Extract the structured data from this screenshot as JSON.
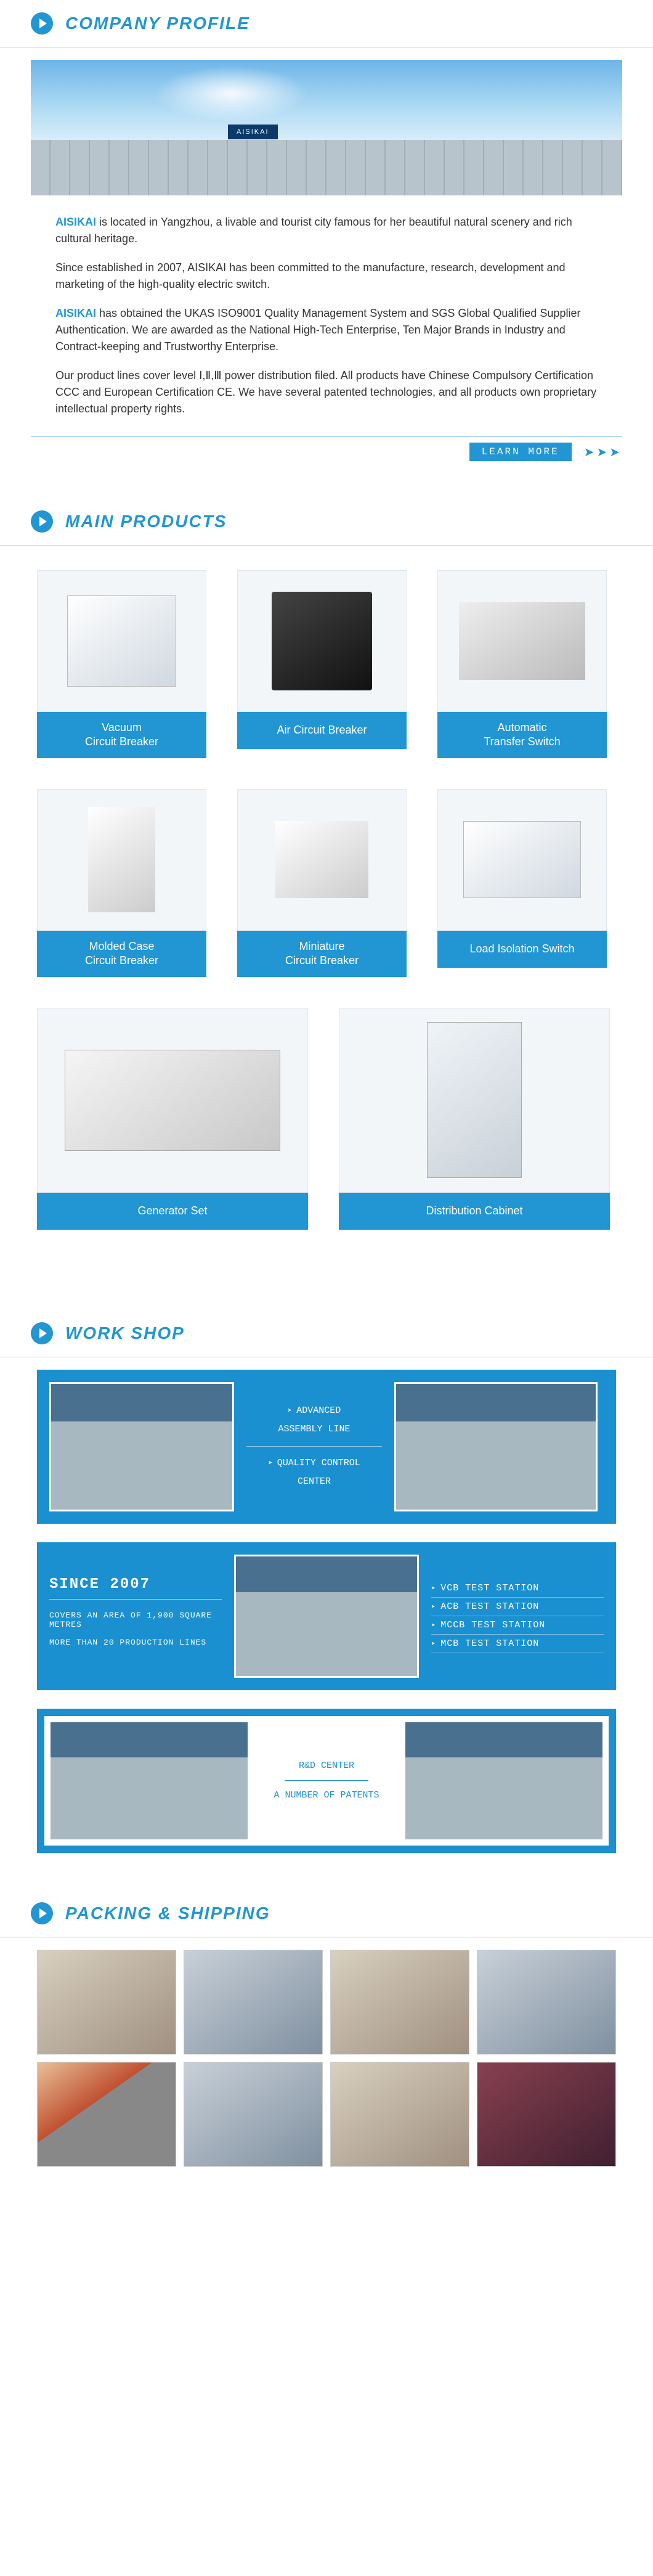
{
  "colors": {
    "accent": "#2196d3",
    "accent_dark": "#1a90d0",
    "text": "#333333",
    "border": "#cccccc",
    "card_bg": "#f2f6f9"
  },
  "company_profile": {
    "heading": "COMPANY PROFILE",
    "building_sign": "AISIKAI",
    "brand": "AISIKAI",
    "para1_rest": " is located in Yangzhou, a livable and tourist city famous for her beautiful natural scenery and rich cultural heritage.",
    "para2": "Since established in 2007, AISIKAI has been committed to the manufacture, research, development and marketing of the high-quality electric switch.",
    "para3_rest": " has obtained the UKAS ISO9001 Quality Management System and SGS Global Qualified Supplier Authentication. We are awarded as the National High-Tech Enterprise, Ten Major Brands in Industry and Contract-keeping and Trustworthy Enterprise.",
    "para4": "Our product lines cover level Ⅰ,Ⅱ,Ⅲ power distribution filed. All products have  Chinese Compulsory Certification CCC and European Certification CE. We have several patented technologies, and all products own proprietary intellectual property rights.",
    "learn_more": "LEARN MORE",
    "arrows": "➤➤➤"
  },
  "main_products": {
    "heading": "MAIN PRODUCTS",
    "row1": [
      {
        "label": "Vacuum\nCircuit Breaker"
      },
      {
        "label": "Air Circuit Breaker"
      },
      {
        "label": "Automatic\nTransfer Switch"
      }
    ],
    "row2": [
      {
        "label": "Molded Case\nCircuit Breaker"
      },
      {
        "label": "Miniature\nCircuit Breaker"
      },
      {
        "label": "Load Isolation Switch"
      }
    ],
    "row3": [
      {
        "label": "Generator Set"
      },
      {
        "label": "Distribution Cabinet"
      }
    ]
  },
  "workshop": {
    "heading": "WORK SHOP",
    "block1": {
      "line1": "ADVANCED",
      "line2": "ASSEMBLY LINE",
      "line3": "QUALITY CONTROL",
      "line4": "CENTER"
    },
    "block2": {
      "since": "SINCE 2007",
      "area": "COVERS AN AREA OF 1,900 SQUARE METRES",
      "lines": "MORE THAN 20 PRODUCTION LINES",
      "stations": [
        "VCB TEST STATION",
        "ACB TEST STATION",
        "MCCB TEST STATION",
        "MCB TEST STATION"
      ]
    },
    "block3": {
      "title": "R&D CENTER",
      "sub": "A NUMBER OF PATENTS"
    }
  },
  "packing": {
    "heading": "PACKING & SHIPPING"
  }
}
